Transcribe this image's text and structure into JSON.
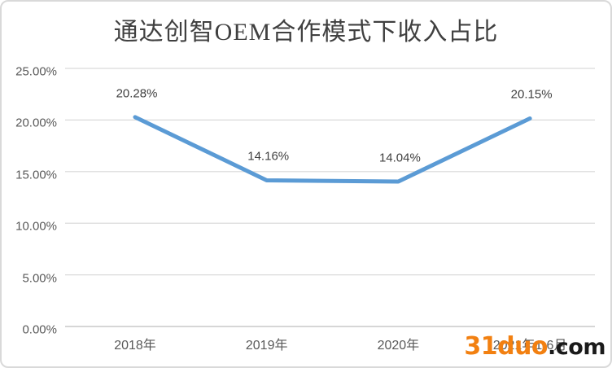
{
  "chart_data": {
    "type": "line",
    "title": "通达创智OEM合作模式下收入占比",
    "categories": [
      "2018年",
      "2019年",
      "2020年",
      "2021年1-6月"
    ],
    "values": [
      20.28,
      14.16,
      14.04,
      20.15
    ],
    "data_labels": [
      "20.28%",
      "14.16%",
      "14.04%",
      "20.15%"
    ],
    "ylim": [
      0,
      25
    ],
    "y_ticks": [
      {
        "value": 0,
        "label": "0.00%"
      },
      {
        "value": 5,
        "label": "5.00%"
      },
      {
        "value": 10,
        "label": "10.00%"
      },
      {
        "value": 15,
        "label": "15.00%"
      },
      {
        "value": 20,
        "label": "20.00%"
      },
      {
        "value": 25,
        "label": "25.00%"
      }
    ],
    "grid": true,
    "legend": "none",
    "line_color": "#5B9BD5",
    "gridline_color": "#D9D9D9",
    "axis_line_color": "#C9C9C9",
    "axis_label_color": "#595959",
    "data_label_color": "#404040",
    "title_color": "#404040"
  },
  "watermark": {
    "brand": "31duo",
    "suffix": ".com",
    "brand_color": "#F28011",
    "suffix_color": "#1A1A1A"
  }
}
